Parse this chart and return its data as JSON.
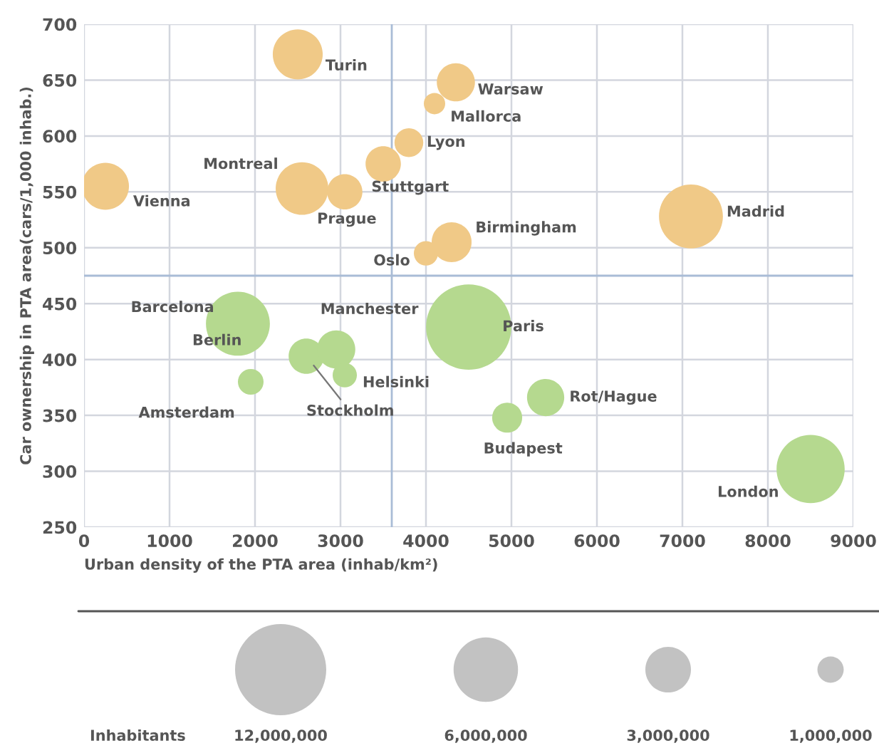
{
  "chart_data": {
    "type": "bubble",
    "xlabel": "Urban density of the PTA area (inhab/km²)",
    "ylabel": "Car ownership in PTA area(cars/1,000 inhab.)",
    "xlim": [
      0,
      9000
    ],
    "xticks": [
      0,
      1000,
      2000,
      3000,
      4000,
      5000,
      6000,
      7000,
      8000,
      9000
    ],
    "ylim": [
      250,
      700
    ],
    "yticks": [
      250,
      300,
      350,
      400,
      450,
      500,
      550,
      600,
      650,
      700
    ],
    "grid": true,
    "legend_title": "Inhabitants",
    "size_legend": [
      {
        "value": 12000000,
        "label": "12,000,000"
      },
      {
        "value": 6000000,
        "label": "6,000,000"
      },
      {
        "value": 3000000,
        "label": "3,000,000"
      },
      {
        "value": 1000000,
        "label": "1,000,000"
      }
    ],
    "ref_lines": [
      {
        "axis": "x",
        "value": 3600,
        "color": "#a9bcd6"
      },
      {
        "axis": "y",
        "value": 475,
        "color": "#a9bcd6"
      }
    ],
    "series": [
      {
        "color": "#f0c987",
        "x": [
          250,
          2500,
          2550,
          3050,
          3500,
          3800,
          4100,
          4350,
          4000,
          4300,
          7100
        ],
        "values": [
          555,
          673,
          553,
          550,
          575,
          594,
          629,
          648,
          495,
          505,
          528
        ],
        "sizes": [
          3200000,
          3600000,
          4000000,
          1800000,
          1800000,
          1200000,
          660000,
          2100000,
          850000,
          2300000,
          5900000
        ]
      },
      {
        "color": "#b5d98f",
        "x": [
          1800,
          1950,
          2600,
          2950,
          3050,
          4500,
          4950,
          5400,
          8500
        ],
        "values": [
          432,
          380,
          403,
          409,
          386,
          429,
          348,
          366,
          302
        ],
        "sizes": [
          5900000,
          950000,
          1800000,
          2100000,
          850000,
          10500000,
          1300000,
          2000000,
          6700000
        ]
      }
    ],
    "annotations": [
      {
        "text": "Vienna",
        "x": 250,
        "y": 555
      },
      {
        "text": "Turin",
        "x": 2500,
        "y": 673
      },
      {
        "text": "Montreal",
        "x": 2550,
        "y": 553
      },
      {
        "text": "Prague",
        "x": 3050,
        "y": 550
      },
      {
        "text": "Stuttgart",
        "x": 3500,
        "y": 575
      },
      {
        "text": "Lyon",
        "x": 3800,
        "y": 594
      },
      {
        "text": "Mallorca",
        "x": 4100,
        "y": 629
      },
      {
        "text": "Warsaw",
        "x": 4350,
        "y": 648
      },
      {
        "text": "Oslo",
        "x": 4000,
        "y": 495
      },
      {
        "text": "Birmingham",
        "x": 4300,
        "y": 505
      },
      {
        "text": "Madrid",
        "x": 7100,
        "y": 528
      },
      "Berlin",
      {
        "text": "Barcelona",
        "x": 1800,
        "y": 432
      },
      {
        "text": "Amsterdam",
        "x": 1950,
        "y": 380
      },
      {
        "text": "Stockholm",
        "x": 2600,
        "y": 403
      },
      {
        "text": "Manchester",
        "x": 2950,
        "y": 409
      },
      {
        "text": "Helsinki",
        "x": 3050,
        "y": 386
      },
      {
        "text": "Paris",
        "x": 4500,
        "y": 429
      },
      {
        "text": "Budapest",
        "x": 4950,
        "y": 348
      },
      {
        "text": "Rot/Hague",
        "x": 5400,
        "y": 366
      },
      {
        "text": "London",
        "x": 8500,
        "y": 302
      }
    ]
  }
}
